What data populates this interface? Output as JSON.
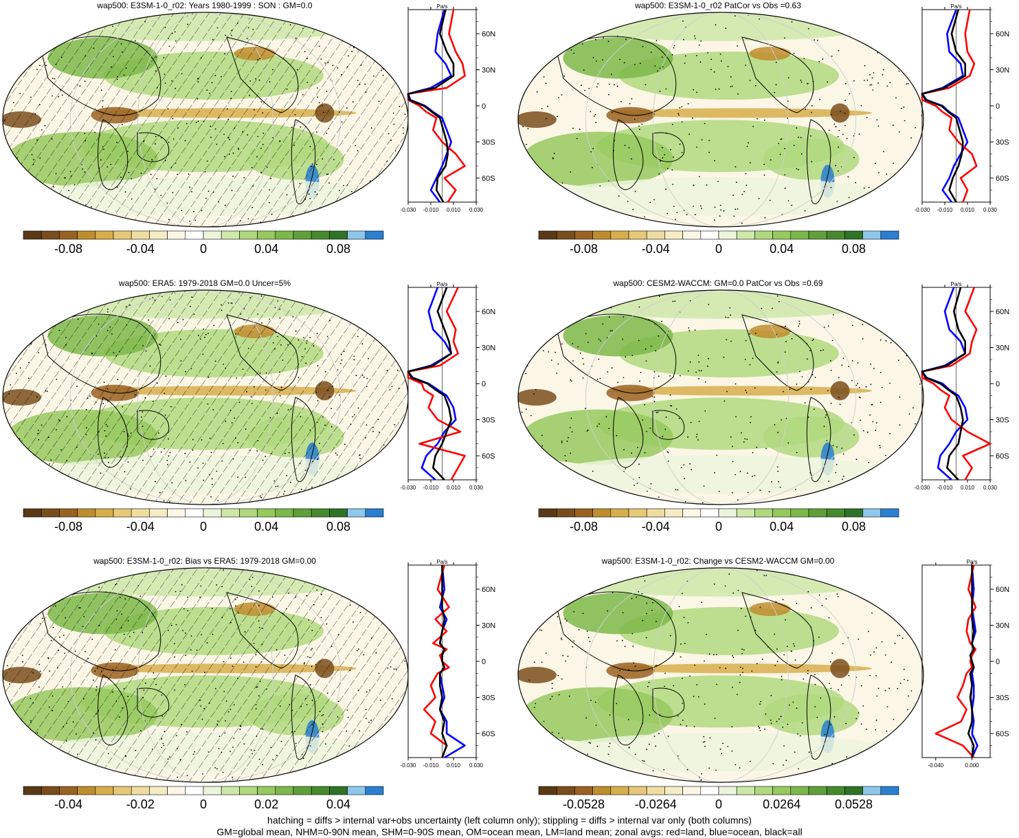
{
  "footer": {
    "line1": "hatching = diffs > internal var+obs uncertainty (left column only); stippling = diffs > internal var only (both columns)",
    "line2": "GM=global mean, NHM=0-90N mean, SHM=0-90S mean, OM=ocean mean, LM=land mean; zonal avgs: red=land, blue=ocean, black=all"
  },
  "colors": {
    "palette": [
      "#5a3a16",
      "#7a4d1c",
      "#9a6222",
      "#c08d2e",
      "#d7ae4c",
      "#e6c878",
      "#efdda0",
      "#f5ebc4",
      "#fbf6e6",
      "#ffffff",
      "#ecf5dc",
      "#cde8a8",
      "#b0d97e",
      "#96c95e",
      "#7cb84a",
      "#5fa03a",
      "#468a2e",
      "#2f7326",
      "#8ec7ec",
      "#2a7fd0"
    ],
    "land": "#ff0000",
    "ocean": "#0000ff",
    "all": "#000000"
  },
  "chart_data": [
    {
      "id": "p1",
      "type": "heatmap",
      "title": "wap500: E3SM-1-0_r02: Years 1980-1999 : SON : GM=0.0",
      "hatching": true,
      "colorbar": {
        "ticks": [
          "-0.08",
          "-0.04",
          "0",
          "0.04",
          "0.08"
        ]
      },
      "zonal": {
        "unit": "Pa/s",
        "xticks": [
          "-0.030",
          "-0.010",
          "0.010",
          "0.030"
        ],
        "xlim": [
          -0.03,
          0.03
        ],
        "yticks": [
          "60N",
          "30N",
          "0",
          "30S",
          "60S"
        ],
        "lat": [
          80,
          60,
          45,
          35,
          25,
          15,
          10,
          5,
          0,
          -5,
          -10,
          -20,
          -30,
          -40,
          -50,
          -60,
          -70,
          -80
        ],
        "land": [
          0.01,
          0.006,
          0.012,
          0.018,
          0.02,
          0.004,
          -0.03,
          -0.03,
          -0.02,
          -0.014,
          -0.005,
          -0.008,
          0.0,
          0.012,
          0.02,
          0.002,
          0.012,
          0.005
        ],
        "ocean": [
          0.002,
          -0.004,
          -0.006,
          0.003,
          0.008,
          -0.01,
          -0.03,
          -0.028,
          -0.015,
          -0.008,
          0.0,
          0.004,
          0.008,
          0.004,
          0.0,
          -0.005,
          -0.01,
          -0.002
        ],
        "all": [
          0.003,
          -0.002,
          0.004,
          0.01,
          0.01,
          -0.006,
          -0.03,
          -0.029,
          -0.016,
          -0.009,
          -0.002,
          0.001,
          0.004,
          0.005,
          0.003,
          -0.004,
          -0.005,
          0.001
        ]
      }
    },
    {
      "id": "p2",
      "type": "heatmap",
      "title": "wap500: E3SM-1-0_r02 PatCor vs Obs =0.63",
      "hatching": false,
      "colorbar": {
        "ticks": [
          "-0.08",
          "-0.04",
          "0",
          "0.04",
          "0.08"
        ]
      },
      "zonal": {
        "unit": "Pa/s",
        "xticks": [
          "-0.030",
          "-0.010",
          "0.010",
          "0.030"
        ],
        "xlim": [
          -0.03,
          0.03
        ],
        "yticks": [
          "60N",
          "30N",
          "0",
          "30S",
          "60S"
        ],
        "lat": [
          80,
          60,
          45,
          35,
          25,
          15,
          10,
          5,
          0,
          -5,
          -10,
          -20,
          -30,
          -40,
          -50,
          -60,
          -70,
          -80
        ],
        "land": [
          0.012,
          0.008,
          0.01,
          0.016,
          0.012,
          -0.006,
          -0.03,
          -0.03,
          -0.018,
          -0.012,
          -0.004,
          -0.006,
          0.002,
          0.014,
          0.018,
          0.004,
          0.01,
          0.006
        ],
        "ocean": [
          0.0,
          -0.008,
          -0.006,
          0.004,
          0.006,
          -0.012,
          -0.03,
          -0.026,
          -0.012,
          -0.006,
          0.002,
          0.006,
          0.01,
          0.004,
          -0.002,
          -0.006,
          -0.012,
          -0.004
        ],
        "all": [
          0.002,
          -0.004,
          0.0,
          0.008,
          0.008,
          -0.01,
          -0.03,
          -0.027,
          -0.013,
          -0.007,
          0.0,
          0.003,
          0.006,
          0.005,
          0.002,
          -0.003,
          -0.006,
          0.0
        ]
      }
    },
    {
      "id": "p3",
      "type": "heatmap",
      "title": "wap500: ERA5: 1979-2018 GM=0.0 Uncer=5%",
      "hatching": true,
      "colorbar": {
        "ticks": [
          "-0.08",
          "-0.04",
          "0",
          "0.04",
          "0.08"
        ]
      },
      "zonal": {
        "unit": "Pa/s",
        "xticks": [
          "-0.030",
          "-0.010",
          "0.010",
          "0.030"
        ],
        "xlim": [
          -0.03,
          0.03
        ],
        "yticks": [
          "60N",
          "30N",
          "0",
          "30S",
          "60S"
        ],
        "lat": [
          80,
          60,
          45,
          35,
          25,
          15,
          10,
          5,
          0,
          -5,
          -10,
          -20,
          -30,
          -40,
          -50,
          -60,
          -70,
          -80
        ],
        "land": [
          0.014,
          0.004,
          0.012,
          0.01,
          0.014,
          -0.002,
          -0.03,
          -0.03,
          -0.018,
          -0.016,
          -0.008,
          -0.012,
          -0.004,
          0.016,
          -0.02,
          0.02,
          0.014,
          0.008
        ],
        "ocean": [
          -0.004,
          -0.012,
          -0.008,
          0.002,
          0.008,
          -0.01,
          -0.03,
          -0.026,
          -0.012,
          -0.004,
          0.004,
          0.01,
          0.012,
          0.002,
          -0.004,
          -0.014,
          -0.018,
          -0.006
        ],
        "all": [
          0.004,
          -0.004,
          0.002,
          0.006,
          0.008,
          -0.008,
          -0.03,
          -0.027,
          -0.013,
          -0.006,
          0.002,
          0.006,
          0.008,
          0.004,
          0.0,
          -0.006,
          -0.008,
          0.002
        ]
      }
    },
    {
      "id": "p4",
      "type": "heatmap",
      "title": "wap500: CESM2-WACCM: GM=0.0 PatCor vs Obs =0.69",
      "hatching": false,
      "colorbar": {
        "ticks": [
          "-0.08",
          "-0.04",
          "0",
          "0.04",
          "0.08"
        ]
      },
      "zonal": {
        "unit": "Pa/s",
        "xticks": [
          "-0.030",
          "-0.010",
          "0.010",
          "0.030"
        ],
        "xlim": [
          -0.03,
          0.03
        ],
        "yticks": [
          "60N",
          "30N",
          "0",
          "30S",
          "60S"
        ],
        "lat": [
          80,
          60,
          45,
          35,
          25,
          15,
          10,
          5,
          0,
          -5,
          -10,
          -20,
          -30,
          -40,
          -50,
          -60,
          -70,
          -80
        ],
        "land": [
          0.016,
          0.008,
          0.018,
          0.014,
          0.012,
          -0.004,
          -0.03,
          -0.03,
          -0.02,
          -0.014,
          -0.006,
          -0.01,
          -0.004,
          0.01,
          0.03,
          0.006,
          0.014,
          0.008
        ],
        "ocean": [
          -0.002,
          -0.01,
          -0.006,
          0.004,
          0.008,
          -0.01,
          -0.03,
          -0.026,
          -0.012,
          -0.006,
          0.002,
          0.008,
          0.01,
          0.0,
          -0.006,
          -0.014,
          -0.016,
          -0.004
        ],
        "all": [
          0.004,
          -0.002,
          0.002,
          0.008,
          0.008,
          -0.008,
          -0.03,
          -0.027,
          -0.014,
          -0.007,
          0.0,
          0.004,
          0.006,
          0.004,
          0.002,
          -0.006,
          -0.008,
          0.002
        ]
      }
    },
    {
      "id": "p5",
      "type": "heatmap",
      "title": "wap500: E3SM-1-0_r02: Bias vs ERA5: 1979-2018  GM=0.00",
      "hatching": true,
      "colorbar": {
        "ticks": [
          "-0.04",
          "-0.02",
          "0",
          "0.02",
          "0.04"
        ]
      },
      "zonal": {
        "unit": "Pa/s",
        "xticks": [
          "-0.030",
          "-0.010",
          "0.010",
          "0.030"
        ],
        "xlim": [
          -0.03,
          0.03
        ],
        "yticks": [
          "60N",
          "30N",
          "0",
          "30S",
          "60S"
        ],
        "lat": [
          80,
          60,
          45,
          35,
          25,
          15,
          10,
          5,
          0,
          -5,
          -10,
          -20,
          -30,
          -40,
          -50,
          -60,
          -70,
          -80
        ],
        "land": [
          0.002,
          -0.004,
          0.006,
          -0.006,
          0.004,
          -0.008,
          0.004,
          -0.002,
          0.0,
          0.006,
          -0.004,
          -0.01,
          -0.006,
          -0.016,
          -0.006,
          -0.01,
          0.004,
          0.0
        ],
        "ocean": [
          0.0,
          0.002,
          -0.002,
          0.004,
          0.0,
          -0.002,
          0.002,
          0.0,
          0.0,
          0.002,
          -0.002,
          0.0,
          0.002,
          -0.002,
          0.004,
          0.004,
          0.02,
          0.002
        ],
        "all": [
          0.0,
          0.0,
          0.0,
          0.002,
          0.0,
          -0.002,
          0.002,
          0.0,
          0.0,
          0.002,
          -0.002,
          -0.002,
          0.0,
          -0.002,
          0.002,
          0.0,
          0.004,
          0.0
        ]
      }
    },
    {
      "id": "p6",
      "type": "heatmap",
      "title": "wap500: E3SM-1-0_r02: Change vs CESM2-WACCM GM=0.00",
      "hatching": false,
      "colorbar": {
        "ticks": [
          "-0.0528",
          "-0.0264",
          "0",
          "0.0264",
          "0.0528"
        ]
      },
      "zonal": {
        "unit": "Pa/s",
        "xticks": [
          "-0.040",
          "0.000"
        ],
        "xlim": [
          -0.055,
          0.02
        ],
        "yticks": [
          "60N",
          "30N",
          "0",
          "30S",
          "60S"
        ],
        "lat": [
          80,
          60,
          45,
          35,
          25,
          15,
          10,
          5,
          0,
          -5,
          -10,
          -20,
          -30,
          -40,
          -50,
          -60,
          -70,
          -80
        ],
        "land": [
          0.002,
          -0.004,
          0.004,
          -0.004,
          -0.006,
          -0.002,
          0.004,
          0.0,
          -0.002,
          0.0,
          -0.006,
          -0.01,
          -0.016,
          -0.006,
          -0.012,
          -0.04,
          -0.01,
          0.002
        ],
        "ocean": [
          0.0,
          0.002,
          0.0,
          0.002,
          0.004,
          0.0,
          0.002,
          -0.002,
          0.0,
          0.002,
          0.0,
          0.002,
          0.002,
          0.0,
          0.002,
          0.0,
          0.006,
          0.0
        ],
        "all": [
          0.0,
          0.0,
          0.0,
          0.0,
          0.002,
          0.0,
          0.002,
          -0.002,
          0.0,
          0.002,
          -0.002,
          0.0,
          -0.002,
          0.0,
          0.0,
          -0.004,
          0.002,
          0.0
        ]
      }
    }
  ]
}
